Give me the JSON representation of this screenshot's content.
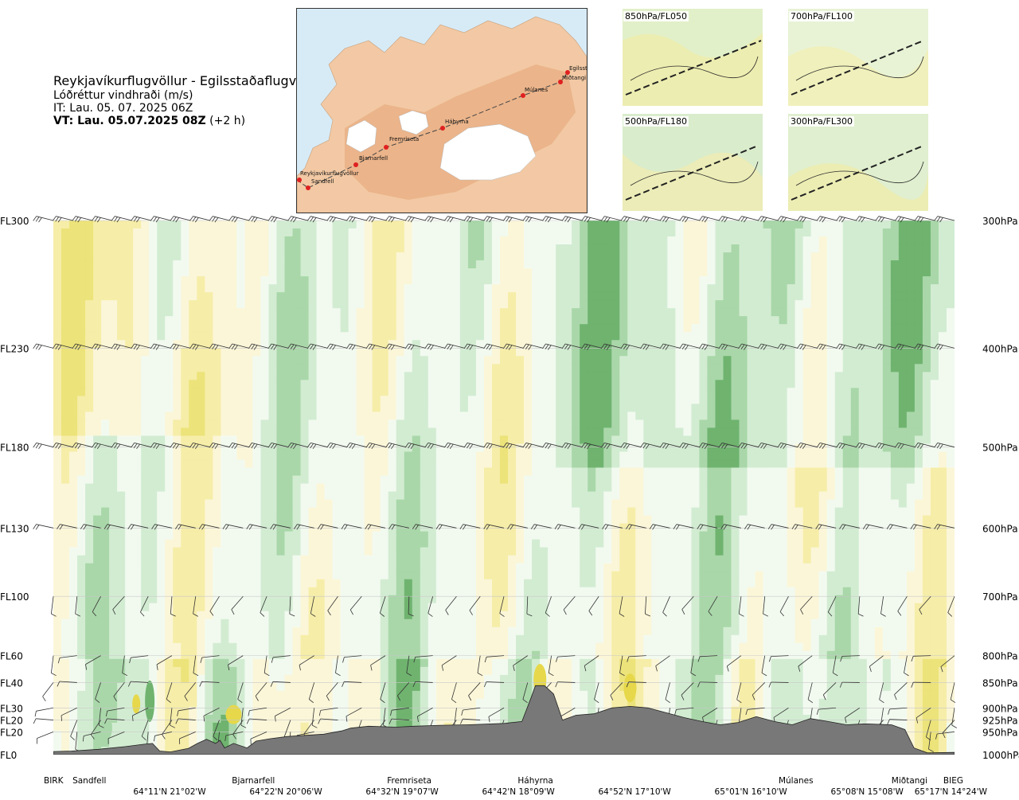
{
  "header": {
    "route": "Reykjavíkurflugvöllur - Egilsstaðaflugvöllur",
    "quantity": "Lóðréttur vindhraði (m/s)",
    "issue_time": "IT: Lau. 05. 07. 2025 06Z",
    "valid_time": "VT: Lau. 05.07.2025 08Z",
    "valid_offset": "(+2 h)"
  },
  "route_map": {
    "points": [
      {
        "name": "Reykjavíkurflugvöllur"
      },
      {
        "name": "Sandfell"
      },
      {
        "name": "Bjarnarfell"
      },
      {
        "name": "Fremriseta"
      },
      {
        "name": "Háhyrna"
      },
      {
        "name": "Múlanes"
      },
      {
        "name": "Miðtangi"
      },
      {
        "name": "Egilsst"
      }
    ]
  },
  "level_maps": [
    {
      "label": "850hPa/FL050"
    },
    {
      "label": "700hPa/FL100"
    },
    {
      "label": "500hPa/FL180"
    },
    {
      "label": "300hPa/FL300"
    }
  ],
  "chart_data": {
    "type": "heatmap",
    "title": "Lóðréttur vindhraði (m/s)",
    "vertical_levels": [
      {
        "fl": "FL300",
        "hpa": "300hPa",
        "p": 300
      },
      {
        "fl": "FL230",
        "hpa": "400hPa",
        "p": 400
      },
      {
        "fl": "FL180",
        "hpa": "500hPa",
        "p": 500
      },
      {
        "fl": "FL130",
        "hpa": "600hPa",
        "p": 600
      },
      {
        "fl": "FL100",
        "hpa": "700hPa",
        "p": 700
      },
      {
        "fl": "FL60",
        "hpa": "800hPa",
        "p": 800
      },
      {
        "fl": "FL40",
        "hpa": "850hPa",
        "p": 850
      },
      {
        "fl": "FL30",
        "hpa": "900hPa",
        "p": 900
      },
      {
        "fl": "FL20",
        "hpa": "925hPa",
        "p": 925
      },
      {
        "fl": "FL20",
        "hpa": "950hPa",
        "p": 950
      },
      {
        "fl": "FL0",
        "hpa": "1000hPa",
        "p": 1000
      }
    ],
    "ylim_hpa": [
      1000,
      300
    ],
    "waypoints": [
      {
        "name": "BIRK",
        "pos": 0.0
      },
      {
        "name": "Sandfell",
        "pos": 0.04
      },
      {
        "name": "Bjarnarfell",
        "pos": 0.222
      },
      {
        "name": "Fremriseta",
        "pos": 0.395
      },
      {
        "name": "Háhyrna",
        "pos": 0.535
      },
      {
        "name": "Múlanes",
        "pos": 0.824
      },
      {
        "name": "Miðtangi",
        "pos": 0.95
      },
      {
        "name": "BIEG",
        "pos": 0.985
      }
    ],
    "coordinates": [
      {
        "label": "64°11'N 21°02'W",
        "pos": 0.129
      },
      {
        "label": "64°22'N 20°06'W",
        "pos": 0.258
      },
      {
        "label": "64°32'N 19°07'W",
        "pos": 0.387
      },
      {
        "label": "64°42'N 18°09'W",
        "pos": 0.516
      },
      {
        "label": "64°52'N 17°10'W",
        "pos": 0.645
      },
      {
        "label": "65°01'N 16°10'W",
        "pos": 0.774
      },
      {
        "label": "65°08'N 15°08'W",
        "pos": 0.903
      },
      {
        "label": "65°17'N 14°24'W",
        "pos": 1.0
      }
    ],
    "terrain_hpa": [
      [
        0.0,
        993
      ],
      [
        0.02,
        992
      ],
      [
        0.05,
        988
      ],
      [
        0.08,
        982
      ],
      [
        0.1,
        977
      ],
      [
        0.11,
        975
      ],
      [
        0.118,
        992
      ],
      [
        0.13,
        994
      ],
      [
        0.15,
        986
      ],
      [
        0.16,
        975
      ],
      [
        0.17,
        966
      ],
      [
        0.18,
        975
      ],
      [
        0.185,
        968
      ],
      [
        0.19,
        985
      ],
      [
        0.2,
        975
      ],
      [
        0.215,
        985
      ],
      [
        0.225,
        970
      ],
      [
        0.24,
        965
      ],
      [
        0.26,
        960
      ],
      [
        0.3,
        955
      ],
      [
        0.32,
        948
      ],
      [
        0.33,
        942
      ],
      [
        0.35,
        938
      ],
      [
        0.38,
        940
      ],
      [
        0.4,
        938
      ],
      [
        0.43,
        936
      ],
      [
        0.46,
        935
      ],
      [
        0.5,
        932
      ],
      [
        0.52,
        928
      ],
      [
        0.53,
        880
      ],
      [
        0.535,
        856
      ],
      [
        0.545,
        856
      ],
      [
        0.555,
        872
      ],
      [
        0.565,
        925
      ],
      [
        0.58,
        915
      ],
      [
        0.6,
        912
      ],
      [
        0.62,
        900
      ],
      [
        0.64,
        897
      ],
      [
        0.66,
        900
      ],
      [
        0.68,
        910
      ],
      [
        0.7,
        920
      ],
      [
        0.72,
        928
      ],
      [
        0.74,
        935
      ],
      [
        0.76,
        930
      ],
      [
        0.78,
        918
      ],
      [
        0.8,
        928
      ],
      [
        0.82,
        935
      ],
      [
        0.84,
        922
      ],
      [
        0.86,
        928
      ],
      [
        0.88,
        935
      ],
      [
        0.9,
        933
      ],
      [
        0.93,
        935
      ],
      [
        0.945,
        945
      ],
      [
        0.955,
        985
      ],
      [
        0.97,
        996
      ],
      [
        1.0,
        995
      ]
    ],
    "palette": {
      "strong_down": "#6fb36f",
      "down": "#a9d7a9",
      "weak_down": "#d2ecd2",
      "neutral": "#f2faf0",
      "weak_up": "#fbf6d8",
      "up": "#f6eda8",
      "strong_up": "#ece37a",
      "very_strong_up": "#e6d84a",
      "terrain": "#787878"
    },
    "grid": true
  }
}
